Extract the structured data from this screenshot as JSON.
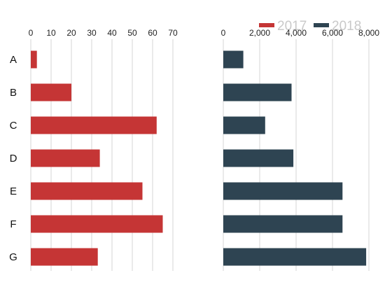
{
  "chart_data": {
    "type": "bar",
    "orientation": "horizontal",
    "categories": [
      "A",
      "B",
      "C",
      "D",
      "E",
      "F",
      "G"
    ],
    "grid": true,
    "legend": {
      "placement": "top-right",
      "entries": [
        {
          "label": "2017",
          "color": "#c53535"
        },
        {
          "label": "2018",
          "color": "#2e4452"
        }
      ]
    },
    "panels": [
      {
        "series_name": "2017",
        "color": "#c53535",
        "values": [
          3,
          20,
          62,
          34,
          55,
          65,
          33
        ],
        "xlim": [
          0,
          70
        ],
        "ticks": [
          0,
          10,
          20,
          30,
          40,
          50,
          60,
          70
        ],
        "tick_labels": [
          "0",
          "10",
          "20",
          "30",
          "40",
          "50",
          "60",
          "70"
        ]
      },
      {
        "series_name": "2018",
        "color": "#2e4452",
        "values": [
          1100,
          3750,
          2300,
          3850,
          6550,
          6550,
          7850
        ],
        "xlim": [
          0,
          8000
        ],
        "ticks": [
          0,
          2000,
          4000,
          6000,
          8000
        ],
        "tick_labels": [
          "0",
          "2,000",
          "4,000",
          "6,000",
          "8,000"
        ]
      }
    ]
  }
}
